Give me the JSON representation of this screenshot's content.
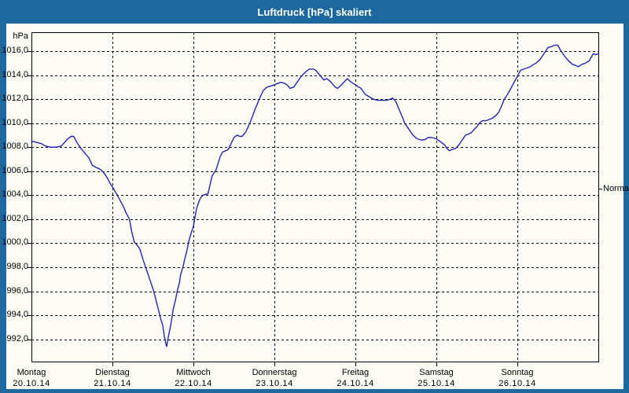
{
  "titlebar": {
    "title": "Luftdruck [hPa] skaliert"
  },
  "colors": {
    "frame_blue": "#1d689e",
    "panel_background": "#fcfcf4",
    "line_blue": "#2424b4",
    "grid_black": "#000000",
    "title_text": "#ffffff"
  },
  "axis": {
    "unit_label": "hPa",
    "y_tick_values": [
      1016,
      1014,
      1012,
      1010,
      1008,
      1006,
      1004,
      1002,
      1000,
      998,
      996,
      994,
      992
    ],
    "y_tick_labels": [
      "1016,0",
      "1014,0",
      "1012,0",
      "1010,0",
      "1008,0",
      "1006,0",
      "1004,0",
      "1002,0",
      "1000,0",
      "998,0",
      "996,0",
      "994,0",
      "992,0"
    ],
    "days": [
      {
        "name": "Montag",
        "date": "20.10.14"
      },
      {
        "name": "Dienstag",
        "date": "21.10.14"
      },
      {
        "name": "Mittwoch",
        "date": "22.10.14"
      },
      {
        "name": "Donnerstag",
        "date": "23.10.14"
      },
      {
        "name": "Freitag",
        "date": "24.10.14"
      },
      {
        "name": "Samstag",
        "date": "25.10.14"
      },
      {
        "name": "Sonntag",
        "date": "26.10.14"
      }
    ]
  },
  "right_marker": {
    "label": "Normal",
    "value": 1004.5
  },
  "chart_data": {
    "type": "line",
    "title": "Luftdruck [hPa] skaliert",
    "ylabel": "hPa",
    "xlabel": "",
    "x_unit": "days since Mon 20.10.14 00:00",
    "ylim": [
      990.3,
      1017.6
    ],
    "y_grid_step": 2,
    "x_gridlines": "day boundaries (dashed)",
    "grid": true,
    "legend_position": "none",
    "annotations": [
      {
        "label": "Normal",
        "y": 1004.5,
        "position": "right-axis-tick"
      }
    ],
    "series": [
      {
        "name": "Luftdruck [hPa]",
        "color": "#2424b4",
        "points": [
          [
            0.0,
            1008.5
          ],
          [
            0.06,
            1008.4
          ],
          [
            0.12,
            1008.3
          ],
          [
            0.17,
            1008.1
          ],
          [
            0.23,
            1008.0
          ],
          [
            0.31,
            1008.0
          ],
          [
            0.37,
            1008.1
          ],
          [
            0.41,
            1008.4
          ],
          [
            0.45,
            1008.7
          ],
          [
            0.49,
            1008.9
          ],
          [
            0.52,
            1008.9
          ],
          [
            0.56,
            1008.4
          ],
          [
            0.61,
            1007.9
          ],
          [
            0.66,
            1007.5
          ],
          [
            0.71,
            1007.1
          ],
          [
            0.75,
            1006.5
          ],
          [
            0.8,
            1006.3
          ],
          [
            0.84,
            1006.2
          ],
          [
            0.89,
            1005.9
          ],
          [
            0.94,
            1005.4
          ],
          [
            0.97,
            1005.0
          ],
          [
            1.0,
            1004.7
          ],
          [
            1.05,
            1004.1
          ],
          [
            1.1,
            1003.5
          ],
          [
            1.14,
            1003.0
          ],
          [
            1.17,
            1002.5
          ],
          [
            1.21,
            1002.0
          ],
          [
            1.24,
            1000.9
          ],
          [
            1.27,
            1000.1
          ],
          [
            1.31,
            999.8
          ],
          [
            1.34,
            999.5
          ],
          [
            1.38,
            998.6
          ],
          [
            1.41,
            998.0
          ],
          [
            1.46,
            997.0
          ],
          [
            1.51,
            996.0
          ],
          [
            1.54,
            995.2
          ],
          [
            1.57,
            994.4
          ],
          [
            1.6,
            993.6
          ],
          [
            1.62,
            993.2
          ],
          [
            1.64,
            992.3
          ],
          [
            1.66,
            991.6
          ],
          [
            1.67,
            991.4
          ],
          [
            1.69,
            992.2
          ],
          [
            1.72,
            993.2
          ],
          [
            1.75,
            994.5
          ],
          [
            1.78,
            995.3
          ],
          [
            1.8,
            996.0
          ],
          [
            1.83,
            996.8
          ],
          [
            1.84,
            997.3
          ],
          [
            1.87,
            998.0
          ],
          [
            1.89,
            998.6
          ],
          [
            1.92,
            999.4
          ],
          [
            1.94,
            1000.1
          ],
          [
            1.97,
            1000.8
          ],
          [
            2.0,
            1001.4
          ],
          [
            2.02,
            1002.2
          ],
          [
            2.04,
            1002.9
          ],
          [
            2.07,
            1003.5
          ],
          [
            2.09,
            1003.8
          ],
          [
            2.12,
            1004.0
          ],
          [
            2.16,
            1004.1
          ],
          [
            2.18,
            1004.1
          ],
          [
            2.23,
            1005.6
          ],
          [
            2.28,
            1006.1
          ],
          [
            2.33,
            1007.2
          ],
          [
            2.36,
            1007.6
          ],
          [
            2.4,
            1007.7
          ],
          [
            2.43,
            1007.8
          ],
          [
            2.48,
            1008.5
          ],
          [
            2.5,
            1008.8
          ],
          [
            2.54,
            1009.0
          ],
          [
            2.57,
            1008.9
          ],
          [
            2.6,
            1008.9
          ],
          [
            2.64,
            1009.2
          ],
          [
            2.67,
            1009.6
          ],
          [
            2.72,
            1010.4
          ],
          [
            2.77,
            1011.3
          ],
          [
            2.82,
            1012.1
          ],
          [
            2.86,
            1012.7
          ],
          [
            2.91,
            1013.0
          ],
          [
            2.96,
            1013.1
          ],
          [
            3.0,
            1013.2
          ],
          [
            3.04,
            1013.3
          ],
          [
            3.08,
            1013.4
          ],
          [
            3.13,
            1013.3
          ],
          [
            3.17,
            1013.1
          ],
          [
            3.19,
            1012.9
          ],
          [
            3.24,
            1013.0
          ],
          [
            3.28,
            1013.4
          ],
          [
            3.32,
            1013.8
          ],
          [
            3.36,
            1014.1
          ],
          [
            3.39,
            1014.3
          ],
          [
            3.43,
            1014.5
          ],
          [
            3.48,
            1014.5
          ],
          [
            3.51,
            1014.4
          ],
          [
            3.56,
            1014.0
          ],
          [
            3.61,
            1013.6
          ],
          [
            3.65,
            1013.7
          ],
          [
            3.7,
            1013.4
          ],
          [
            3.75,
            1013.0
          ],
          [
            3.78,
            1012.9
          ],
          [
            3.83,
            1013.2
          ],
          [
            3.87,
            1013.5
          ],
          [
            3.9,
            1013.7
          ],
          [
            3.95,
            1013.4
          ],
          [
            4.0,
            1013.2
          ],
          [
            4.04,
            1013.0
          ],
          [
            4.07,
            1012.9
          ],
          [
            4.12,
            1012.4
          ],
          [
            4.17,
            1012.2
          ],
          [
            4.22,
            1012.0
          ],
          [
            4.27,
            1011.9
          ],
          [
            4.33,
            1011.9
          ],
          [
            4.39,
            1011.9
          ],
          [
            4.43,
            1012.0
          ],
          [
            4.46,
            1012.1
          ],
          [
            4.5,
            1011.8
          ],
          [
            4.53,
            1011.3
          ],
          [
            4.58,
            1010.5
          ],
          [
            4.61,
            1010.0
          ],
          [
            4.66,
            1009.5
          ],
          [
            4.71,
            1009.0
          ],
          [
            4.76,
            1008.7
          ],
          [
            4.81,
            1008.6
          ],
          [
            4.85,
            1008.6
          ],
          [
            4.9,
            1008.8
          ],
          [
            4.94,
            1008.8
          ],
          [
            5.0,
            1008.7
          ],
          [
            5.04,
            1008.5
          ],
          [
            5.1,
            1008.2
          ],
          [
            5.13,
            1007.9
          ],
          [
            5.16,
            1007.7
          ],
          [
            5.19,
            1007.8
          ],
          [
            5.24,
            1007.9
          ],
          [
            5.28,
            1008.2
          ],
          [
            5.32,
            1008.6
          ],
          [
            5.36,
            1009.0
          ],
          [
            5.4,
            1009.1
          ],
          [
            5.43,
            1009.2
          ],
          [
            5.47,
            1009.5
          ],
          [
            5.5,
            1009.7
          ],
          [
            5.53,
            1010.0
          ],
          [
            5.57,
            1010.2
          ],
          [
            5.61,
            1010.2
          ],
          [
            5.65,
            1010.3
          ],
          [
            5.69,
            1010.4
          ],
          [
            5.73,
            1010.6
          ],
          [
            5.77,
            1010.9
          ],
          [
            5.81,
            1011.5
          ],
          [
            5.84,
            1012.0
          ],
          [
            5.88,
            1012.4
          ],
          [
            5.92,
            1012.9
          ],
          [
            5.96,
            1013.4
          ],
          [
            6.0,
            1013.9
          ],
          [
            6.04,
            1014.4
          ],
          [
            6.08,
            1014.5
          ],
          [
            6.12,
            1014.6
          ],
          [
            6.16,
            1014.7
          ],
          [
            6.18,
            1014.8
          ],
          [
            6.23,
            1015.0
          ],
          [
            6.28,
            1015.3
          ],
          [
            6.31,
            1015.6
          ],
          [
            6.34,
            1015.9
          ],
          [
            6.38,
            1016.3
          ],
          [
            6.43,
            1016.4
          ],
          [
            6.47,
            1016.5
          ],
          [
            6.5,
            1016.5
          ],
          [
            6.53,
            1016.1
          ],
          [
            6.55,
            1015.9
          ],
          [
            6.58,
            1015.6
          ],
          [
            6.63,
            1015.2
          ],
          [
            6.68,
            1014.9
          ],
          [
            6.72,
            1014.8
          ],
          [
            6.75,
            1014.7
          ],
          [
            6.8,
            1014.9
          ],
          [
            6.84,
            1015.0
          ],
          [
            6.89,
            1015.2
          ],
          [
            6.92,
            1015.6
          ],
          [
            6.94,
            1015.8
          ],
          [
            6.97,
            1015.7
          ],
          [
            7.0,
            1015.8
          ]
        ]
      }
    ]
  }
}
